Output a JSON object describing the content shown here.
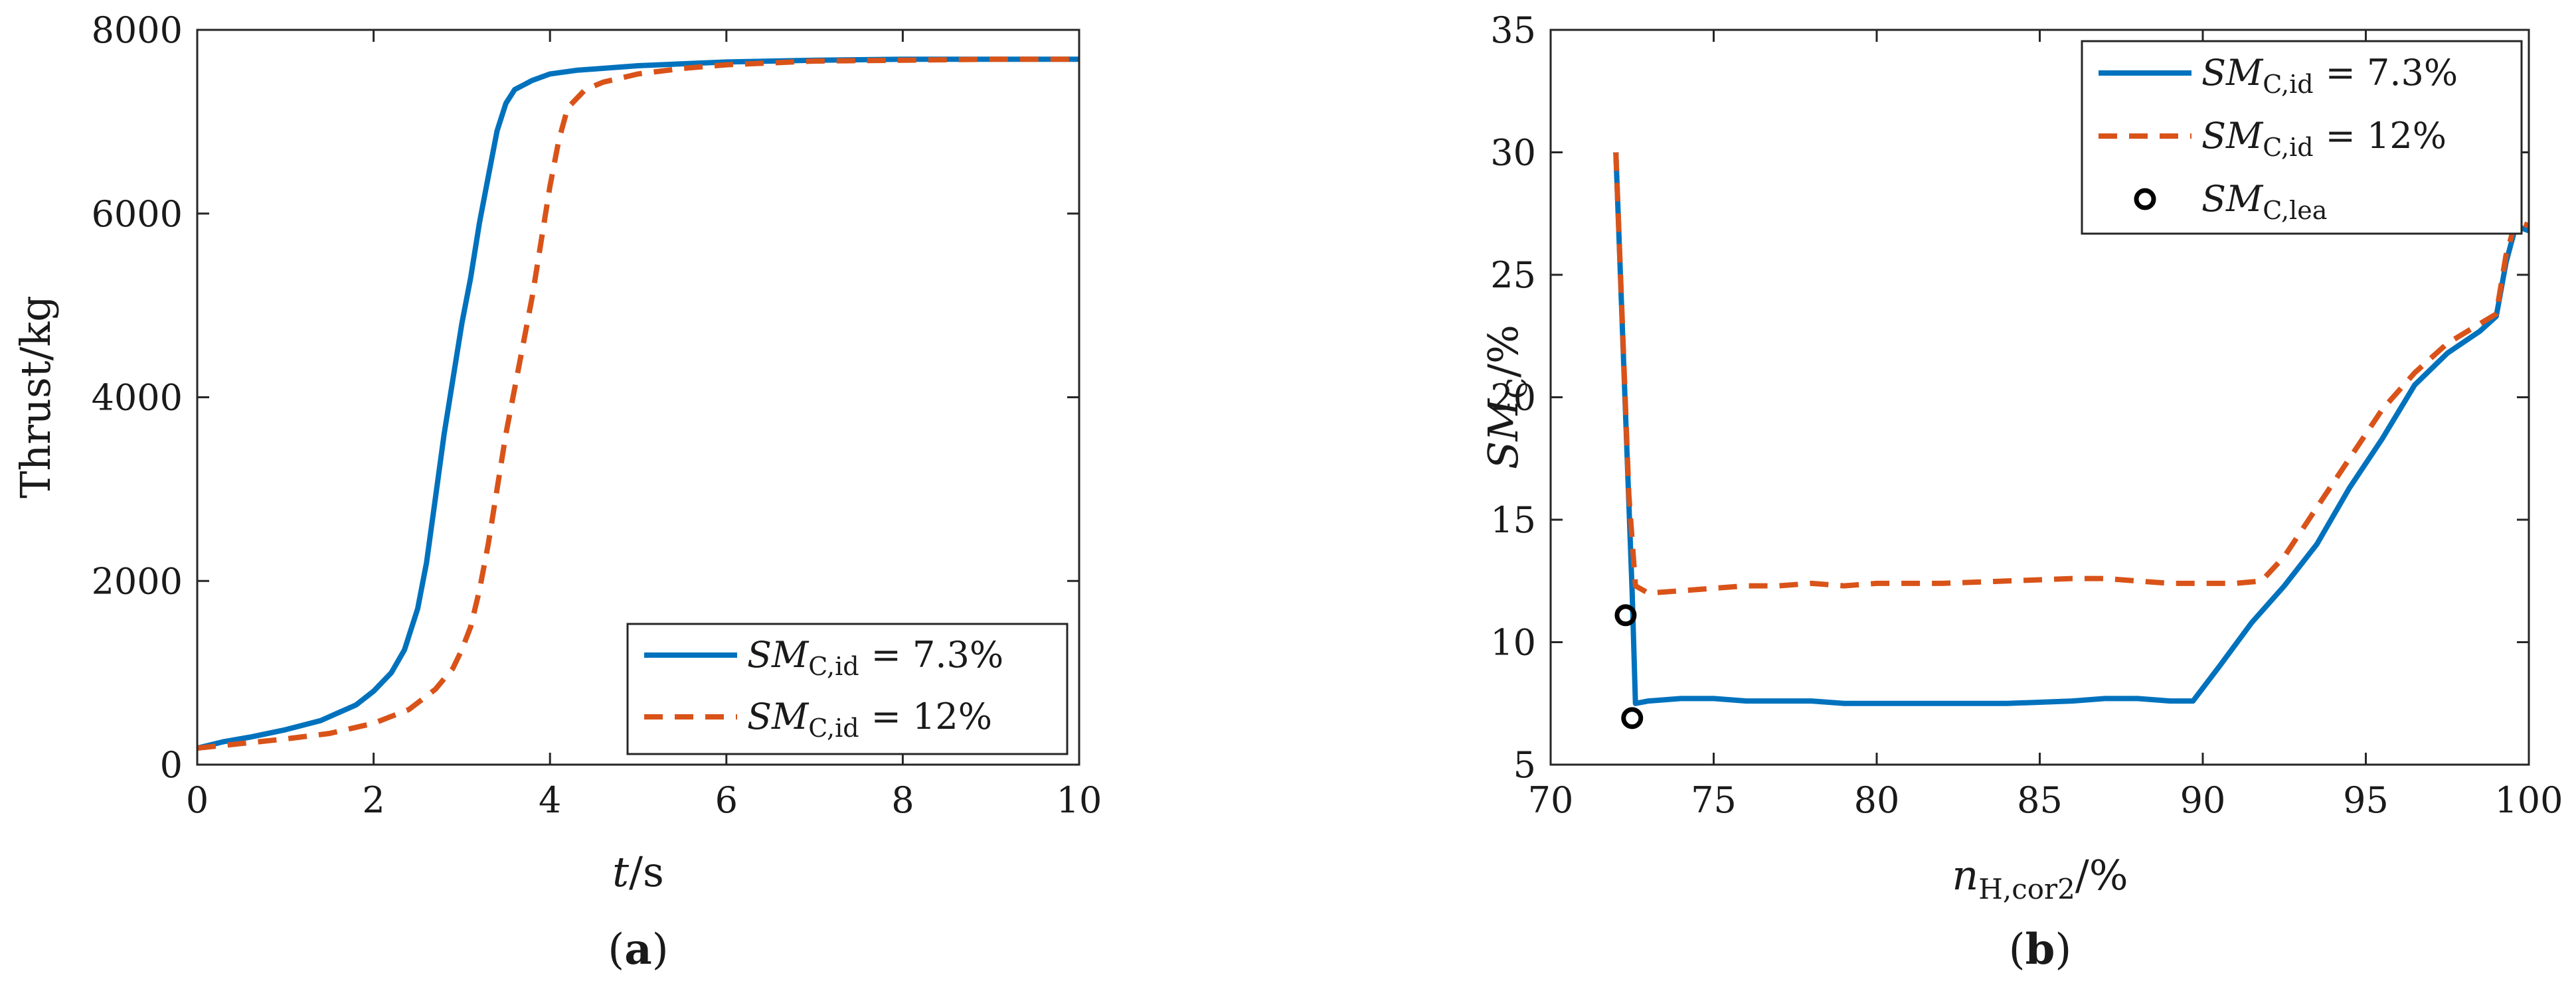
{
  "colors": {
    "series1": "#0072BD",
    "series2": "#D95319",
    "marker": "#000000",
    "axis": "#262626"
  },
  "panels": {
    "a": {
      "label_open": "(",
      "label_letter": "a",
      "label_close": ")"
    },
    "b": {
      "label_open": "(",
      "label_letter": "b",
      "label_close": ")"
    }
  },
  "chart_data": [
    {
      "type": "line",
      "ylabel": "Thrust/kg",
      "xlabel_var": "t",
      "xlabel_unit": "/s",
      "xlim": [
        0,
        10
      ],
      "ylim": [
        0,
        8000
      ],
      "xticks": [
        0,
        2,
        4,
        6,
        8,
        10
      ],
      "yticks": [
        0,
        2000,
        4000,
        6000,
        8000
      ],
      "grid": false,
      "legend_position": "bottom-right",
      "series": [
        {
          "name": "SM_C,id = 7.3%",
          "legend": {
            "var": "SM",
            "sub": "C,id",
            "value": "= 7.3%"
          },
          "style": "solid",
          "x": [
            0,
            0.3,
            0.6,
            1.0,
            1.4,
            1.8,
            2.0,
            2.2,
            2.35,
            2.5,
            2.6,
            2.7,
            2.8,
            2.9,
            3.0,
            3.1,
            3.2,
            3.3,
            3.4,
            3.5,
            3.6,
            3.7,
            3.8,
            4.0,
            4.3,
            5.0,
            6.0,
            7.0,
            8.0,
            9.0,
            10.0
          ],
          "y": [
            180,
            250,
            300,
            380,
            480,
            650,
            800,
            1000,
            1250,
            1700,
            2200,
            2900,
            3600,
            4200,
            4800,
            5300,
            5900,
            6400,
            6900,
            7200,
            7350,
            7400,
            7450,
            7520,
            7560,
            7610,
            7650,
            7670,
            7680,
            7680,
            7680
          ]
        },
        {
          "name": "SM_C,id = 12%",
          "legend": {
            "var": "SM",
            "sub": "C,id",
            "value": "= 12%"
          },
          "style": "dashed",
          "x": [
            0,
            0.5,
            1.0,
            1.5,
            2.0,
            2.4,
            2.7,
            2.9,
            3.0,
            3.1,
            3.2,
            3.3,
            3.4,
            3.5,
            3.6,
            3.7,
            3.8,
            3.9,
            4.0,
            4.1,
            4.2,
            4.4,
            4.6,
            5.0,
            5.5,
            6.0,
            7.0,
            8.0,
            9.0,
            10.0
          ],
          "y": [
            180,
            230,
            280,
            340,
            450,
            600,
            820,
            1050,
            1250,
            1500,
            1900,
            2400,
            3000,
            3600,
            4100,
            4600,
            5100,
            5700,
            6300,
            6800,
            7150,
            7350,
            7430,
            7520,
            7580,
            7620,
            7660,
            7670,
            7680,
            7680
          ]
        }
      ]
    },
    {
      "type": "line",
      "ylabel_var": "SM",
      "ylabel_sub": "C",
      "ylabel_unit": "/%",
      "xlabel_var": "n",
      "xlabel_sub": "H,cor2",
      "xlabel_unit": "/%",
      "xlim": [
        70,
        100
      ],
      "ylim": [
        5,
        35
      ],
      "xticks": [
        70,
        75,
        80,
        85,
        90,
        95,
        100
      ],
      "yticks": [
        5,
        10,
        15,
        20,
        25,
        30,
        35
      ],
      "grid": false,
      "legend_position": "top-right",
      "series": [
        {
          "name": "SM_C,id = 7.3%",
          "legend": {
            "var": "SM",
            "sub": "C,id",
            "value": "= 7.3%"
          },
          "style": "solid",
          "x": [
            72.0,
            72.5,
            72.6,
            73.0,
            74.0,
            75.0,
            76.0,
            77.0,
            78.0,
            79.0,
            80.0,
            82.0,
            84.0,
            86.0,
            87.0,
            88.0,
            89.0,
            89.7,
            90.5,
            91.5,
            92.5,
            93.5,
            94.5,
            95.5,
            96.5,
            97.5,
            98.5,
            99.0,
            99.3,
            99.6,
            100.0
          ],
          "y": [
            30.0,
            12.0,
            7.5,
            7.6,
            7.7,
            7.7,
            7.6,
            7.6,
            7.6,
            7.5,
            7.5,
            7.5,
            7.5,
            7.6,
            7.7,
            7.7,
            7.6,
            7.6,
            9.0,
            10.8,
            12.3,
            14.0,
            16.3,
            18.3,
            20.5,
            21.8,
            22.7,
            23.3,
            25.5,
            27.0,
            26.8
          ]
        },
        {
          "name": "SM_C,id = 12%",
          "legend": {
            "var": "SM",
            "sub": "C,id",
            "value": "= 12%"
          },
          "style": "dashed",
          "x": [
            72.0,
            72.4,
            72.6,
            73.0,
            74.0,
            75.0,
            76.0,
            77.0,
            78.0,
            79.0,
            80.0,
            82.0,
            84.0,
            86.0,
            87.0,
            88.0,
            89.0,
            90.0,
            91.0,
            91.8,
            92.5,
            93.5,
            94.5,
            95.5,
            96.5,
            97.5,
            98.5,
            99.0,
            99.3,
            99.6,
            100.0
          ],
          "y": [
            30.0,
            16.0,
            12.3,
            12.0,
            12.1,
            12.2,
            12.3,
            12.3,
            12.4,
            12.3,
            12.4,
            12.4,
            12.5,
            12.6,
            12.6,
            12.5,
            12.4,
            12.4,
            12.4,
            12.5,
            13.5,
            15.5,
            17.5,
            19.5,
            21.0,
            22.2,
            23.0,
            23.4,
            25.8,
            27.2,
            27.0
          ]
        },
        {
          "name": "SM_C,lea",
          "legend": {
            "var": "SM",
            "sub": "C,lea",
            "value": ""
          },
          "style": "marker",
          "x": [
            72.3,
            72.5
          ],
          "y": [
            11.1,
            6.9
          ]
        }
      ]
    }
  ]
}
